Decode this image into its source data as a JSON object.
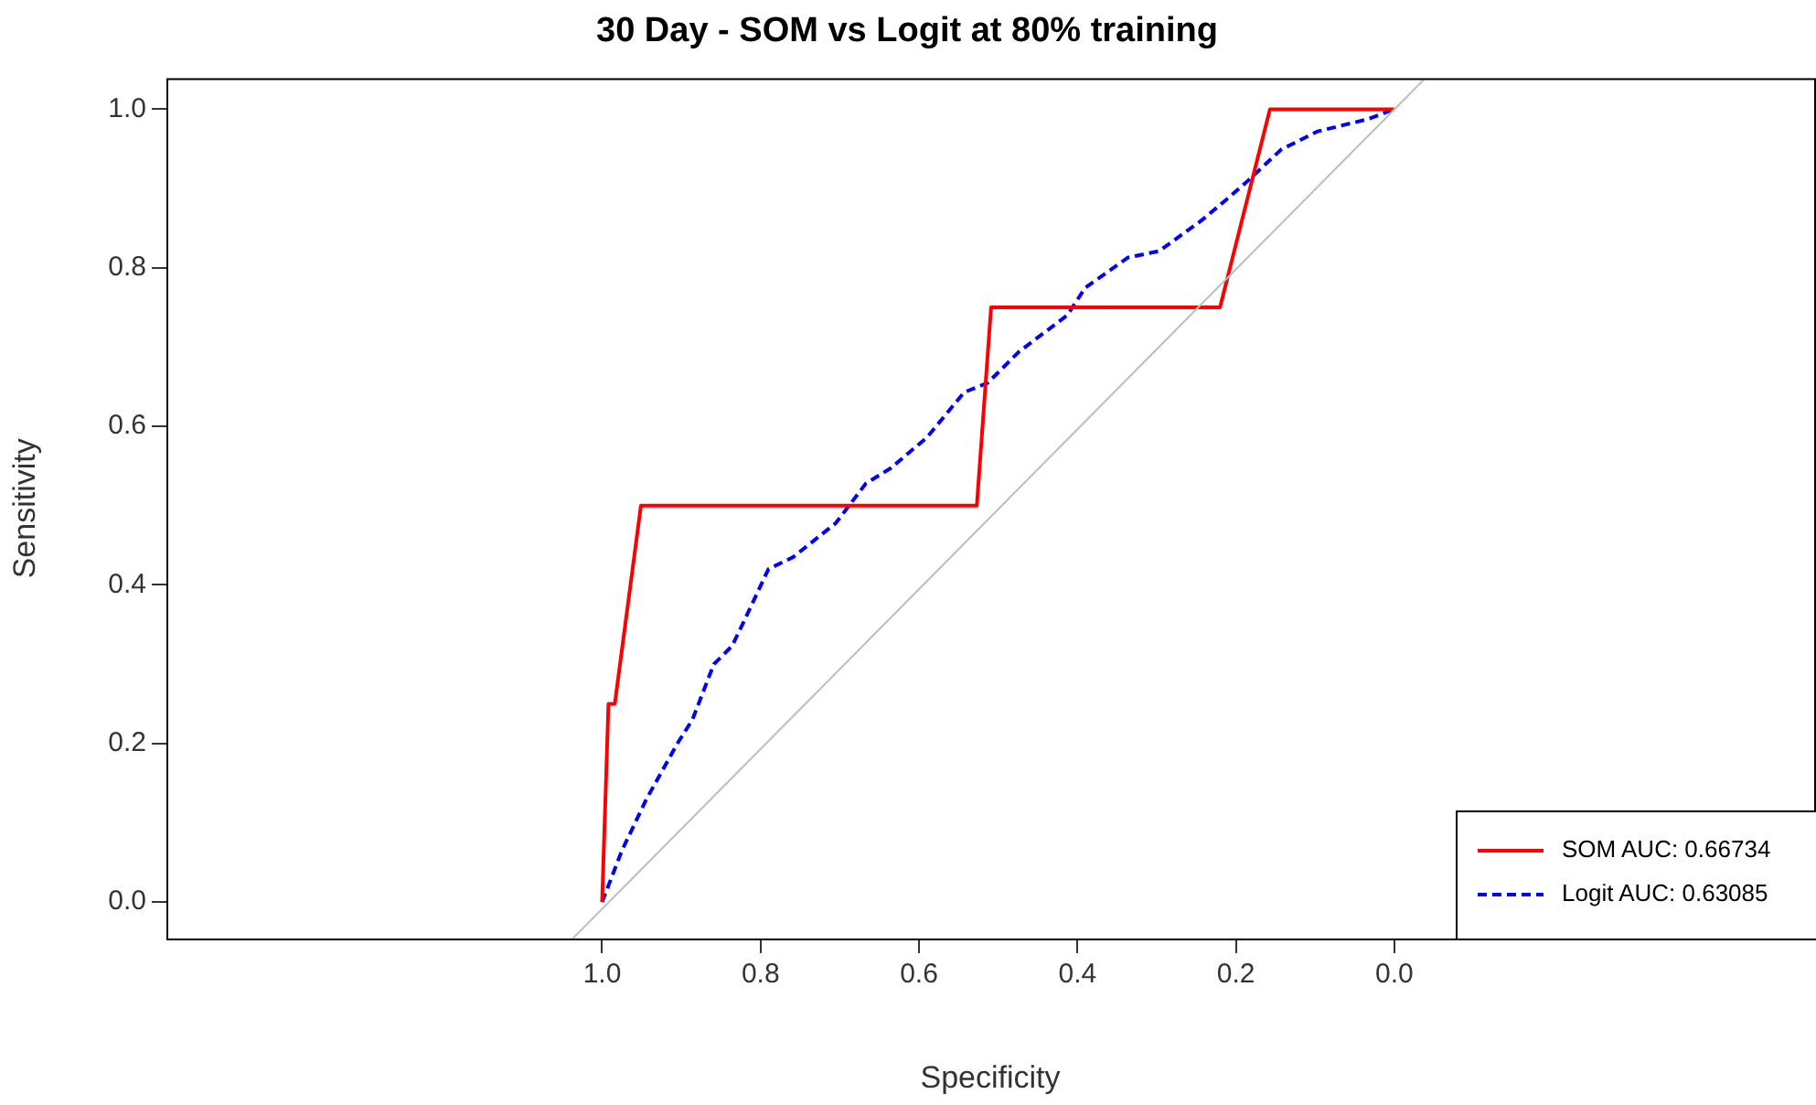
{
  "chart_data": {
    "type": "line",
    "title": "30 Day - SOM vs Logit at 80% training",
    "xlabel": "Specificity",
    "ylabel": "Sensitivity",
    "xlim": [
      1.55,
      -0.53
    ],
    "ylim": [
      -0.046,
      1.039
    ],
    "xticks": [
      {
        "value": 1,
        "label": "1.0"
      },
      0.8,
      0.6,
      0.4,
      0.2,
      {
        "value": 0,
        "label": "0.0"
      }
    ],
    "yticks": [
      {
        "value": 0,
        "label": "0.0"
      },
      0.2,
      0.4,
      0.6,
      0.8,
      {
        "value": 1,
        "label": "1.0"
      }
    ],
    "grid": false,
    "legend": "bottom right",
    "marker": "none",
    "series": [
      {
        "type": "line",
        "color": "#bebebe",
        "line_style": "solid",
        "x": [
          1.037,
          -0.039
        ],
        "values": [
          -0.046,
          1.039
        ]
      },
      {
        "name": "SOM AUC: 0.66734",
        "color": "#ff0000",
        "line_style": "solid",
        "x": [
          1.0,
          0.992,
          0.984,
          0.951,
          0.527,
          0.509,
          0.22,
          0.157,
          0.0
        ],
        "values": [
          0,
          0.25,
          0.25,
          0.5,
          0.5,
          0.75,
          0.75,
          1.0,
          1.0
        ]
      },
      {
        "name": "Logit AUC: 0.63085",
        "color": "#0000ff",
        "line_style": "dashed",
        "x": [
          1.0,
          0.975,
          0.944,
          0.905,
          0.886,
          0.859,
          0.836,
          0.821,
          0.79,
          0.759,
          0.705,
          0.667,
          0.636,
          0.59,
          0.543,
          0.513,
          0.474,
          0.413,
          0.39,
          0.336,
          0.297,
          0.243,
          0.212,
          0.189,
          0.143,
          0.097,
          0.035,
          0.0
        ],
        "values": [
          0,
          0.065,
          0.13,
          0.2,
          0.23,
          0.3,
          0.323,
          0.354,
          0.42,
          0.435,
          0.478,
          0.528,
          0.547,
          0.586,
          0.643,
          0.655,
          0.694,
          0.74,
          0.775,
          0.813,
          0.821,
          0.86,
          0.886,
          0.906,
          0.949,
          0.972,
          0.987,
          1.0
        ]
      }
    ]
  }
}
